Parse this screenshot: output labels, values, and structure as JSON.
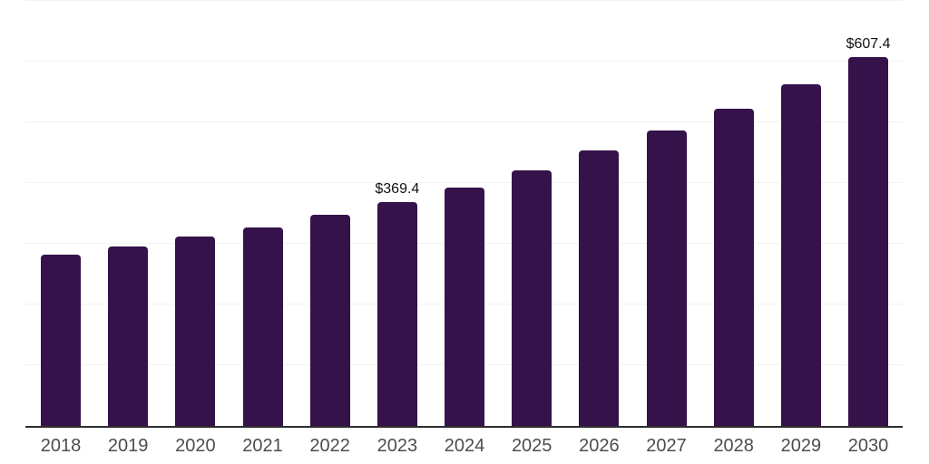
{
  "chart_data": {
    "type": "bar",
    "title": "",
    "xlabel": "",
    "ylabel": "",
    "categories": [
      "2018",
      "2019",
      "2020",
      "2021",
      "2022",
      "2023",
      "2024",
      "2025",
      "2026",
      "2027",
      "2028",
      "2029",
      "2030"
    ],
    "values": [
      282.8,
      296.0,
      311.9,
      327.2,
      347.5,
      369.4,
      392.9,
      421.1,
      454.0,
      486.5,
      522.2,
      562.5,
      607.4
    ],
    "value_prefix": "$",
    "data_labels": [
      {
        "category": "2023",
        "text": "$369.4"
      },
      {
        "category": "2030",
        "text": "$607.4"
      }
    ],
    "ylim": [
      0,
      700
    ],
    "gridline_step": 100,
    "grid": "horizontal",
    "legend": "none",
    "y_axis_labels_visible": false,
    "colors": {
      "bar": "#351249",
      "axis_line": "#2d2d2d",
      "gridline": "#f2f2f2",
      "tick_label": "#4d4d4d",
      "data_label": "#111111",
      "background": "#ffffff"
    }
  }
}
